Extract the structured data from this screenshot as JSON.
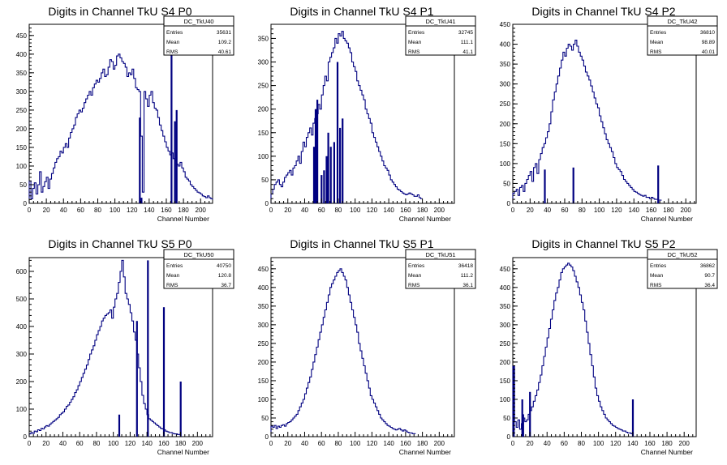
{
  "colors": {
    "hist": "#000080",
    "axis": "#000000",
    "background": "#ffffff"
  },
  "chart_data": [
    {
      "type": "histogram",
      "title": "Digits in Channel TkU S4 P0",
      "xlabel": "Channel Number",
      "xlim": [
        0,
        214
      ],
      "ylim": [
        0,
        480
      ],
      "xticks": [
        0,
        20,
        40,
        60,
        80,
        100,
        120,
        140,
        160,
        180,
        200
      ],
      "yticks": [
        50,
        100,
        150,
        200,
        250,
        300,
        350,
        400,
        450
      ],
      "stats": {
        "name": "DC_TkU40",
        "rows": [
          [
            "Entries",
            "35631"
          ],
          [
            "Mean",
            "109.2"
          ],
          [
            "RMS",
            "40.61"
          ]
        ]
      },
      "bin_width": 2,
      "values": [
        60,
        12,
        40,
        55,
        25,
        50,
        85,
        30,
        45,
        58,
        70,
        40,
        65,
        80,
        95,
        110,
        120,
        125,
        140,
        135,
        150,
        160,
        150,
        175,
        190,
        200,
        210,
        230,
        240,
        250,
        245,
        255,
        270,
        280,
        290,
        300,
        290,
        310,
        320,
        330,
        325,
        335,
        350,
        360,
        340,
        345,
        365,
        385,
        380,
        360,
        370,
        395,
        400,
        390,
        380,
        375,
        365,
        340,
        350,
        345,
        360,
        335,
        310,
        305,
        300,
        180,
        30,
        300,
        280,
        260,
        290,
        300,
        270,
        255,
        250,
        230,
        210,
        195,
        180,
        165,
        150,
        140,
        130,
        135,
        120,
        115,
        105,
        100,
        110,
        95,
        85,
        70,
        65,
        60,
        50,
        45,
        40,
        35,
        30,
        28,
        25,
        20,
        18,
        15,
        20,
        15,
        12,
        10
      ],
      "spikes": [
        [
          129,
          230
        ],
        [
          131,
          15
        ],
        [
          166,
          460
        ],
        [
          170,
          220
        ],
        [
          172,
          250
        ]
      ]
    },
    {
      "type": "histogram",
      "title": "Digits in Channel TkU S4 P1",
      "xlabel": "Channel Number",
      "xlim": [
        0,
        218
      ],
      "ylim": [
        0,
        380
      ],
      "xticks": [
        0,
        20,
        40,
        60,
        80,
        100,
        120,
        140,
        160,
        180,
        200
      ],
      "yticks": [
        50,
        100,
        150,
        200,
        250,
        300,
        350
      ],
      "stats": {
        "name": "DC_TkU41",
        "rows": [
          [
            "Entries",
            "32745"
          ],
          [
            "Mean",
            "111.1"
          ],
          [
            "RMS",
            "41.1"
          ]
        ]
      },
      "bin_width": 2,
      "values": [
        20,
        30,
        40,
        45,
        50,
        40,
        35,
        45,
        55,
        60,
        65,
        70,
        60,
        75,
        80,
        90,
        100,
        85,
        110,
        130,
        120,
        140,
        150,
        160,
        145,
        170,
        180,
        190,
        210,
        200,
        230,
        250,
        270,
        260,
        300,
        310,
        320,
        330,
        350,
        340,
        360,
        355,
        365,
        350,
        345,
        340,
        330,
        320,
        300,
        290,
        280,
        260,
        250,
        240,
        230,
        220,
        200,
        190,
        180,
        170,
        150,
        140,
        130,
        120,
        110,
        100,
        90,
        80,
        75,
        70,
        60,
        50,
        45,
        40,
        35,
        30,
        28,
        25,
        22,
        20,
        18,
        20,
        22,
        20,
        18,
        15,
        15,
        18,
        12,
        10
      ],
      "spikes": [
        [
          51,
          120
        ],
        [
          53,
          200
        ],
        [
          55,
          220
        ],
        [
          60,
          60
        ],
        [
          63,
          70
        ],
        [
          66,
          100
        ],
        [
          68,
          150
        ],
        [
          71,
          120
        ],
        [
          75,
          130
        ],
        [
          79,
          300
        ],
        [
          82,
          160
        ],
        [
          85,
          180
        ]
      ]
    },
    {
      "type": "histogram",
      "title": "Digits in Channel TkU S4 P2",
      "xlabel": "Channel Number",
      "xlim": [
        0,
        212
      ],
      "ylim": [
        0,
        450
      ],
      "xticks": [
        0,
        20,
        40,
        60,
        80,
        100,
        120,
        140,
        160,
        180,
        200
      ],
      "yticks": [
        50,
        100,
        150,
        200,
        250,
        300,
        350,
        400,
        450
      ],
      "stats": {
        "name": "DC_TkU42",
        "rows": [
          [
            "Entries",
            "36810"
          ],
          [
            "Mean",
            "98.89"
          ],
          [
            "RMS",
            "40.01"
          ]
        ]
      },
      "bin_width": 2,
      "values": [
        25,
        30,
        35,
        20,
        40,
        45,
        30,
        50,
        60,
        70,
        80,
        55,
        90,
        100,
        75,
        110,
        125,
        140,
        150,
        165,
        180,
        200,
        230,
        260,
        280,
        300,
        320,
        340,
        360,
        380,
        370,
        390,
        400,
        395,
        385,
        400,
        410,
        395,
        380,
        370,
        360,
        345,
        330,
        320,
        310,
        295,
        280,
        265,
        250,
        240,
        220,
        205,
        190,
        175,
        160,
        150,
        140,
        130,
        115,
        100,
        90,
        85,
        80,
        70,
        60,
        55,
        50,
        45,
        40,
        35,
        30,
        28,
        25,
        22,
        20,
        18,
        20,
        15,
        15,
        12,
        15,
        12,
        10,
        10,
        8,
        8
      ],
      "spikes": [
        [
          37,
          85
        ],
        [
          70,
          90
        ],
        [
          168,
          95
        ]
      ]
    },
    {
      "type": "histogram",
      "title": "Digits in Channel TkU S5 P0",
      "xlabel": "Channel Number",
      "xlim": [
        0,
        218
      ],
      "ylim": [
        0,
        650
      ],
      "xticks": [
        0,
        20,
        40,
        60,
        80,
        100,
        120,
        140,
        160,
        180,
        200
      ],
      "yticks": [
        100,
        200,
        300,
        400,
        500,
        600
      ],
      "stats": {
        "name": "DC_TkU50",
        "rows": [
          [
            "Entries",
            "40750"
          ],
          [
            "Mean",
            "120.8"
          ],
          [
            "RMS",
            "36.7"
          ]
        ]
      },
      "bin_width": 2,
      "values": [
        10,
        15,
        12,
        20,
        18,
        25,
        22,
        30,
        28,
        35,
        40,
        38,
        45,
        50,
        55,
        60,
        65,
        70,
        80,
        85,
        90,
        100,
        110,
        115,
        125,
        135,
        145,
        160,
        170,
        185,
        200,
        215,
        230,
        245,
        260,
        280,
        300,
        315,
        330,
        350,
        370,
        385,
        400,
        420,
        430,
        440,
        445,
        450,
        460,
        430,
        470,
        500,
        520,
        560,
        600,
        640,
        580,
        520,
        500,
        480,
        450,
        420,
        380,
        350,
        300,
        250,
        200,
        150,
        120,
        100,
        80,
        65,
        60,
        55,
        50,
        45,
        40,
        35,
        30,
        28,
        25,
        20,
        18,
        15,
        15,
        12,
        10,
        10,
        8,
        8
      ],
      "spikes": [
        [
          107,
          80
        ],
        [
          128,
          420
        ],
        [
          141,
          640
        ],
        [
          160,
          470
        ],
        [
          180,
          200
        ]
      ]
    },
    {
      "type": "histogram",
      "title": "Digits in Channel TkU S5 P1",
      "xlabel": "Channel Number",
      "xlim": [
        0,
        218
      ],
      "ylim": [
        0,
        480
      ],
      "xticks": [
        0,
        20,
        40,
        60,
        80,
        100,
        120,
        140,
        160,
        180,
        200
      ],
      "yticks": [
        50,
        100,
        150,
        200,
        250,
        300,
        350,
        400,
        450
      ],
      "stats": {
        "name": "DC_TkU51",
        "rows": [
          [
            "Entries",
            "36418"
          ],
          [
            "Mean",
            "111.2"
          ],
          [
            "RMS",
            "36.1"
          ]
        ]
      },
      "bin_width": 2,
      "values": [
        28,
        25,
        30,
        22,
        28,
        25,
        30,
        32,
        28,
        35,
        38,
        40,
        45,
        50,
        55,
        60,
        70,
        80,
        90,
        100,
        115,
        130,
        145,
        160,
        180,
        200,
        220,
        240,
        260,
        280,
        300,
        320,
        340,
        360,
        380,
        400,
        410,
        420,
        430,
        440,
        445,
        450,
        440,
        430,
        420,
        400,
        380,
        360,
        340,
        320,
        300,
        280,
        250,
        230,
        210,
        190,
        170,
        150,
        130,
        110,
        100,
        90,
        80,
        70,
        60,
        50,
        45,
        40,
        35,
        30,
        28,
        25,
        22,
        20,
        18,
        20,
        22,
        18,
        15,
        18,
        15,
        12,
        10,
        10,
        8,
        8
      ],
      "spikes": []
    },
    {
      "type": "histogram",
      "title": "Digits in Channel TkU S5 P2",
      "xlabel": "Channel Number",
      "xlim": [
        0,
        214
      ],
      "ylim": [
        0,
        480
      ],
      "xticks": [
        0,
        20,
        40,
        60,
        80,
        100,
        120,
        140,
        160,
        180,
        200
      ],
      "yticks": [
        50,
        100,
        150,
        200,
        250,
        300,
        350,
        400,
        450
      ],
      "stats": {
        "name": "DC_TkU52",
        "rows": [
          [
            "Entries",
            "36862"
          ],
          [
            "Mean",
            "90.7"
          ],
          [
            "RMS",
            "36.4"
          ]
        ]
      },
      "bin_width": 2,
      "values": [
        190,
        40,
        25,
        45,
        20,
        35,
        50,
        40,
        45,
        60,
        70,
        80,
        95,
        110,
        125,
        145,
        165,
        190,
        215,
        240,
        265,
        290,
        315,
        340,
        365,
        385,
        400,
        420,
        440,
        450,
        455,
        460,
        465,
        460,
        455,
        445,
        430,
        415,
        400,
        380,
        360,
        340,
        310,
        280,
        250,
        220,
        190,
        160,
        130,
        110,
        95,
        80,
        70,
        60,
        50,
        45,
        40,
        35,
        30,
        28,
        25,
        22,
        20,
        18,
        15,
        15,
        12,
        10,
        10,
        8
      ],
      "spikes": [
        [
          1,
          190
        ],
        [
          11,
          100
        ],
        [
          12,
          60
        ],
        [
          140,
          100
        ],
        [
          20,
          120
        ]
      ]
    }
  ]
}
